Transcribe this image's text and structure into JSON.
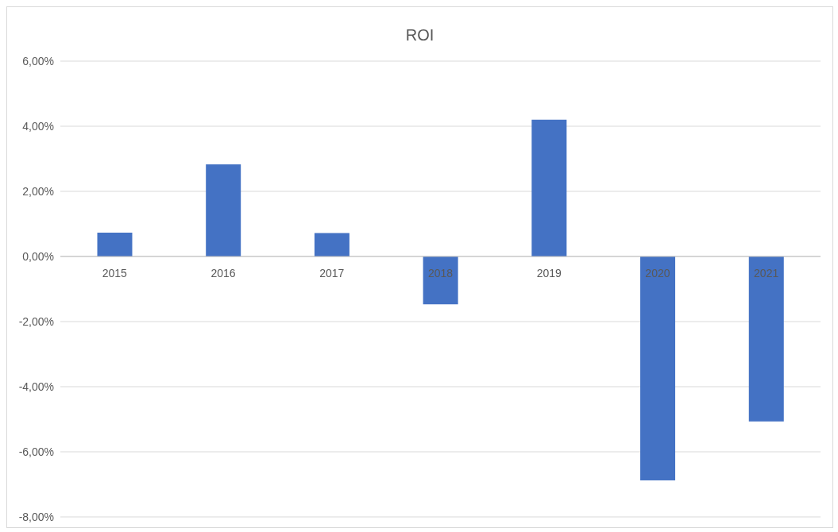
{
  "chart_data": {
    "type": "bar",
    "title": "ROI",
    "categories": [
      "2015",
      "2016",
      "2017",
      "2018",
      "2019",
      "2020",
      "2021"
    ],
    "values": [
      0.73,
      2.83,
      0.72,
      -1.47,
      4.2,
      -6.88,
      -5.07
    ],
    "color": "#4472c4",
    "ylim": [
      -8,
      6
    ],
    "yticks": [
      {
        "value": -8,
        "label": "-8,00%"
      },
      {
        "value": -6,
        "label": "-6,00%"
      },
      {
        "value": -4,
        "label": "-4,00%"
      },
      {
        "value": -2,
        "label": "-2,00%"
      },
      {
        "value": 0,
        "label": "0,00%"
      },
      {
        "value": 2,
        "label": "2,00%"
      },
      {
        "value": 4,
        "label": "4,00%"
      },
      {
        "value": 6,
        "label": "6,00%"
      }
    ],
    "grid": "y",
    "legend": false
  }
}
